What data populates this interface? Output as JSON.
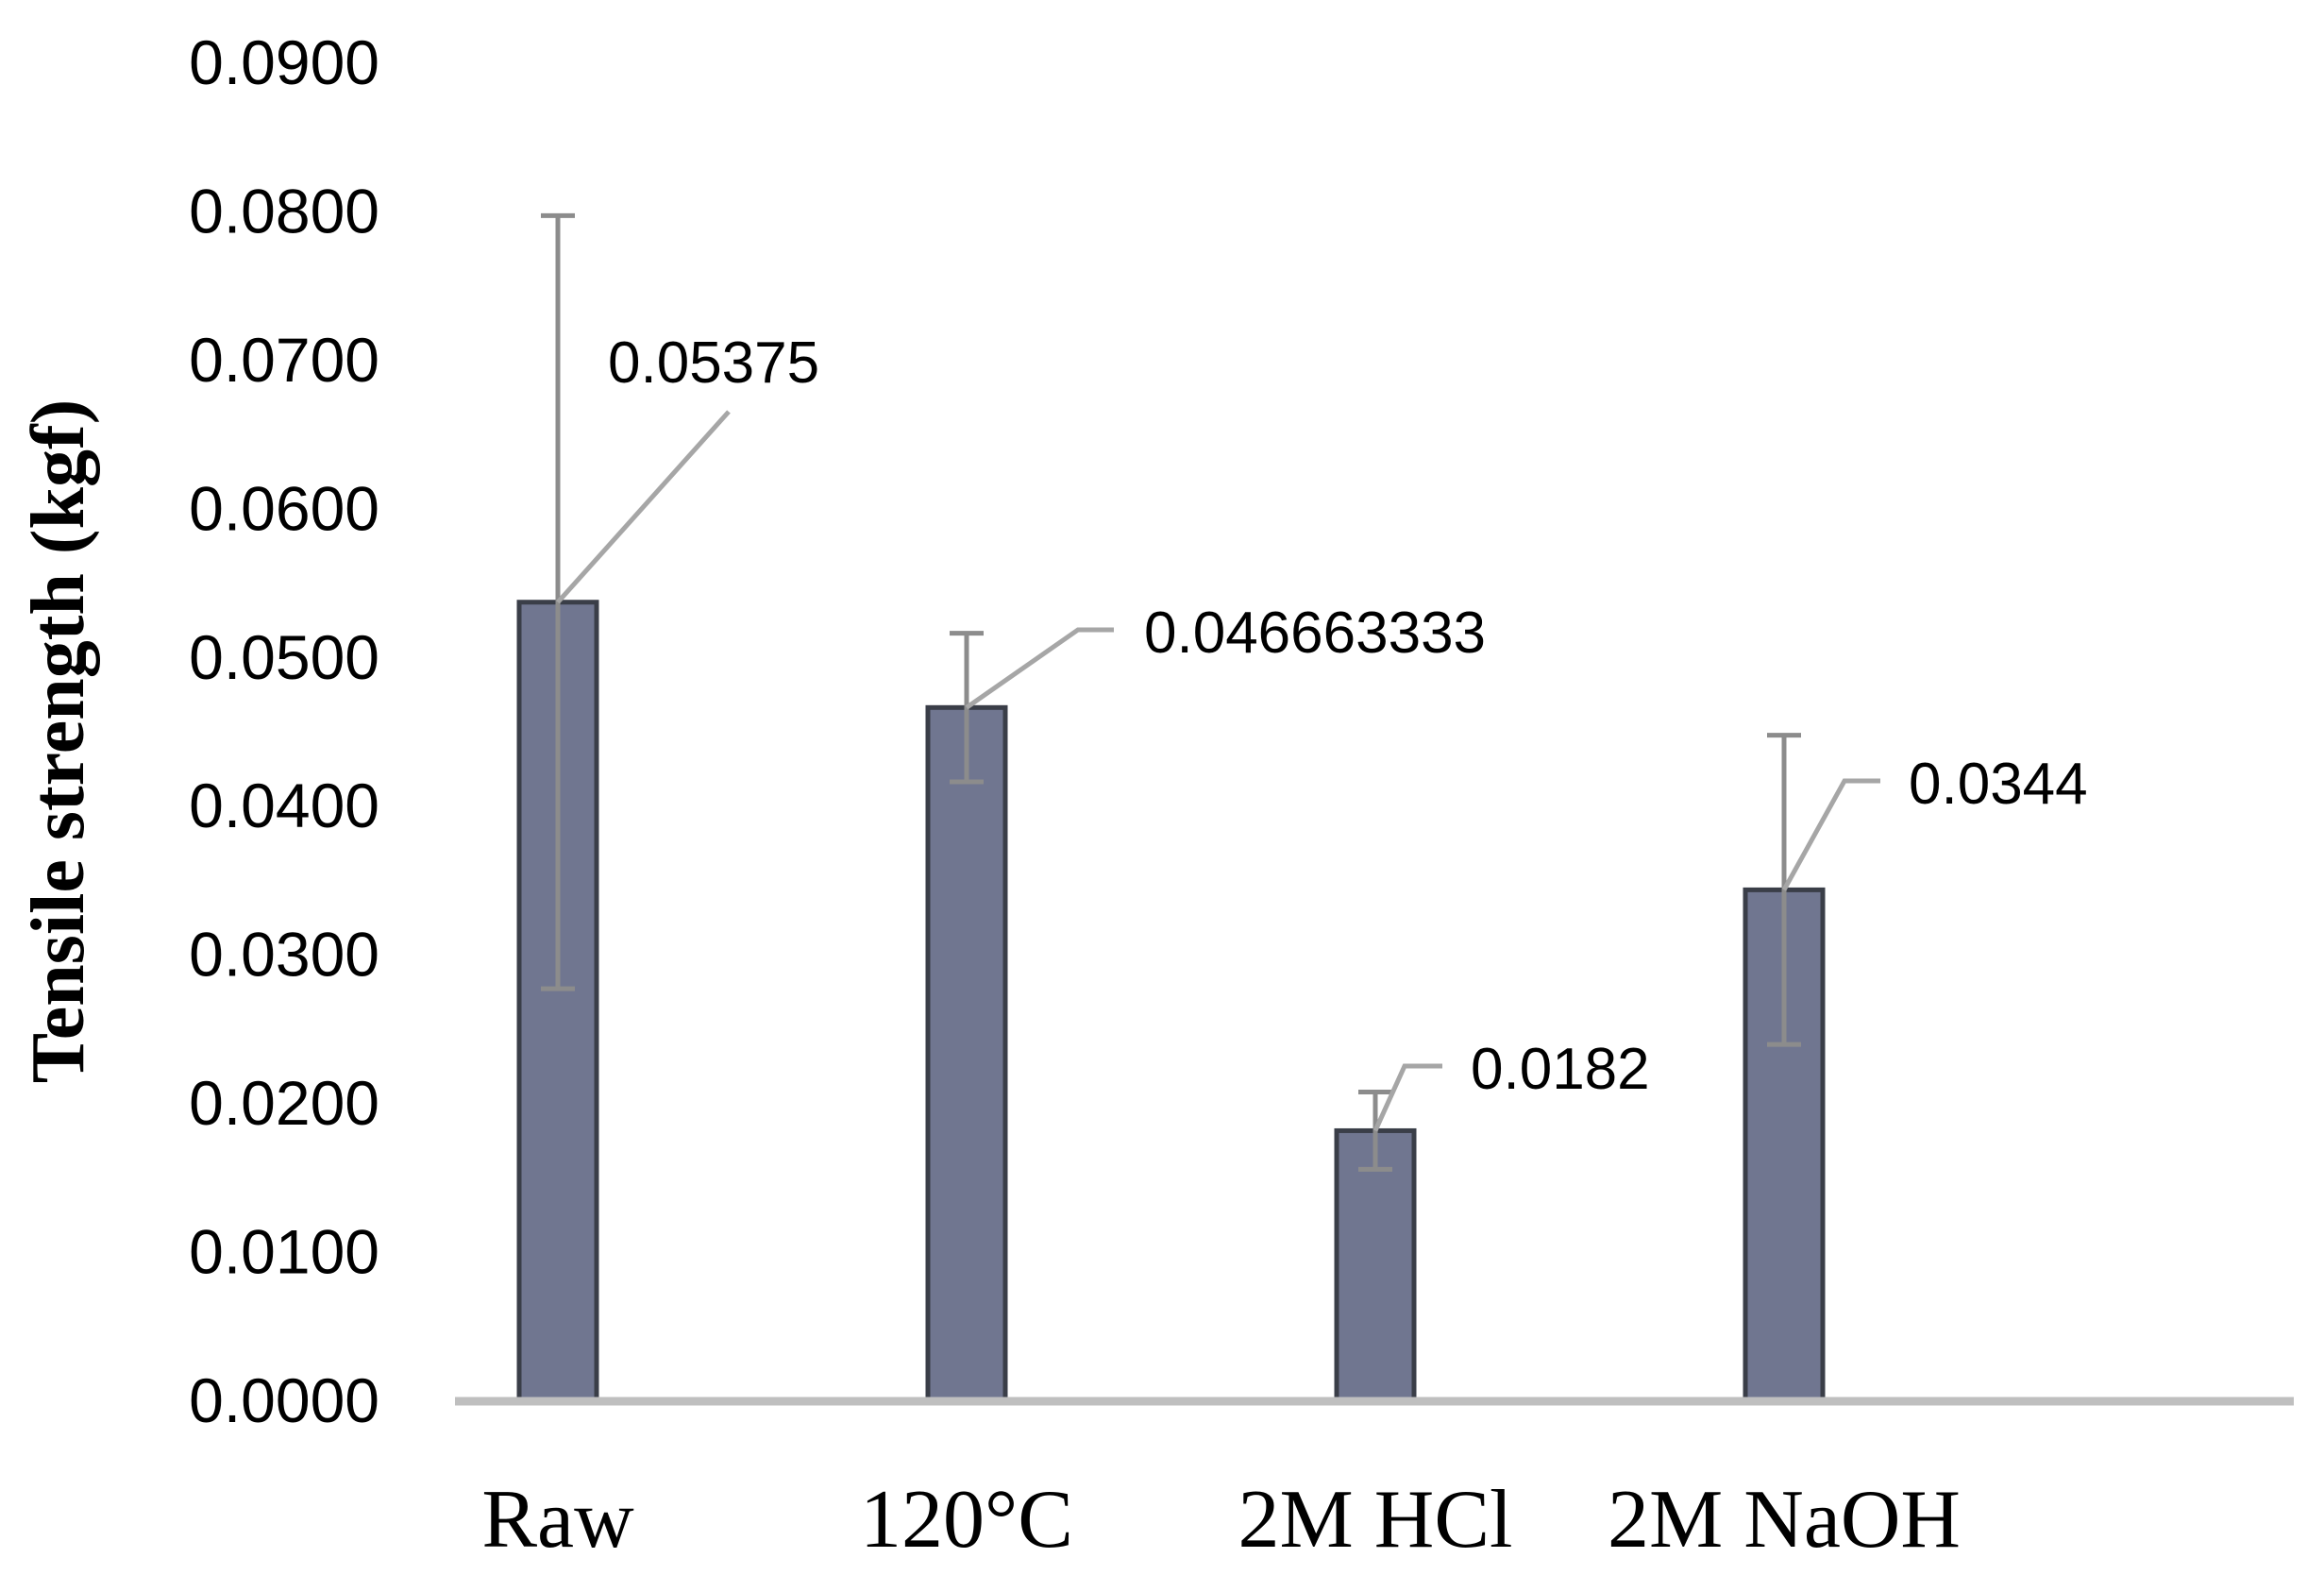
{
  "chart_data": {
    "type": "bar",
    "title": "",
    "xlabel": "",
    "ylabel": "Tensile strength (kgf)",
    "categories": [
      "Raw",
      "120°C",
      "2M HCl",
      "2M NaOH"
    ],
    "values": [
      0.05375,
      0.046663333,
      0.0182,
      0.0344
    ],
    "data_labels": [
      "0.05375",
      "0.046663333",
      "0.0182",
      "0.0344"
    ],
    "error_bars": [
      0.026,
      0.005,
      0.0026,
      0.0104
    ],
    "ylim": [
      0,
      0.09
    ],
    "yticks": [
      0,
      0.01,
      0.02,
      0.03,
      0.04,
      0.05,
      0.06,
      0.07,
      0.08,
      0.09
    ],
    "ytick_labels": [
      "0.0000",
      "0.0100",
      "0.0200",
      "0.0300",
      "0.0400",
      "0.0500",
      "0.0600",
      "0.0700",
      "0.0800",
      "0.0900"
    ],
    "grid": false,
    "legend": "none",
    "colors": {
      "bar_fill": "#707690",
      "bar_stroke": "#3a3e48",
      "error_bar": "#8c8c8c",
      "leader_line": "#a6a6a6",
      "axis": "#bfbfbf"
    }
  }
}
